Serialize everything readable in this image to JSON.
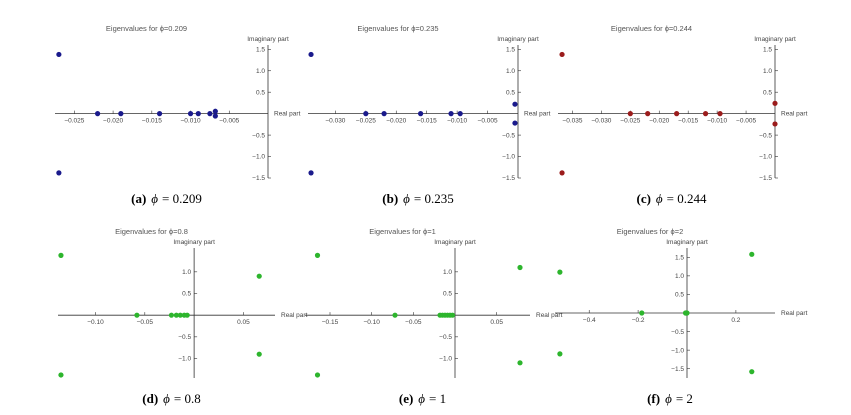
{
  "colors": {
    "blue": "#1a1a8c",
    "red": "#9b1c1c",
    "green": "#2db52d",
    "axis": "#333333"
  },
  "chart_data": [
    {
      "type": "scatter",
      "title": "Eigenvalues for ϕ=0.209",
      "xlabel": "Real part",
      "ylabel": "Imaginary part",
      "caption": {
        "letter": "(a)",
        "symbol": "ϕ",
        "value": "= 0.209"
      },
      "color": "blue",
      "xlim": [
        -0.0275,
        0.0
      ],
      "ylim": [
        -1.5,
        1.6
      ],
      "xticks": [
        {
          "v": -0.025,
          "label": "−0.025"
        },
        {
          "v": -0.02,
          "label": "−0.020"
        },
        {
          "v": -0.015,
          "label": "−0.015"
        },
        {
          "v": -0.01,
          "label": "−0.010"
        },
        {
          "v": -0.005,
          "label": "−0.005"
        }
      ],
      "yticks": [
        {
          "v": 1.5,
          "label": "1.5"
        },
        {
          "v": 1.0,
          "label": "1.0"
        },
        {
          "v": 0.5,
          "label": "0.5"
        },
        {
          "v": -0.5,
          "label": "−0.5"
        },
        {
          "v": -1.0,
          "label": "−1.0"
        },
        {
          "v": -1.5,
          "label": "−1.5"
        }
      ],
      "points": [
        [
          -0.027,
          1.38
        ],
        [
          -0.027,
          -1.38
        ],
        [
          -0.022,
          0.0
        ],
        [
          -0.019,
          0.0
        ],
        [
          -0.014,
          0.0
        ],
        [
          -0.01,
          0.0
        ],
        [
          -0.009,
          0.0
        ],
        [
          -0.0075,
          0.0
        ],
        [
          -0.0068,
          0.055
        ],
        [
          -0.0068,
          -0.055
        ]
      ]
    },
    {
      "type": "scatter",
      "title": "Eigenvalues for ϕ=0.235",
      "xlabel": "Real part",
      "ylabel": "Imaginary part",
      "caption": {
        "letter": "(b)",
        "symbol": "ϕ",
        "value": "= 0.235"
      },
      "color": "blue",
      "xlim": [
        -0.0345,
        0.0
      ],
      "ylim": [
        -1.5,
        1.6
      ],
      "xticks": [
        {
          "v": -0.03,
          "label": "−0.030"
        },
        {
          "v": -0.025,
          "label": "−0.025"
        },
        {
          "v": -0.02,
          "label": "−0.020"
        },
        {
          "v": -0.015,
          "label": "−0.015"
        },
        {
          "v": -0.01,
          "label": "−0.010"
        },
        {
          "v": -0.005,
          "label": "−0.005"
        }
      ],
      "yticks": [
        {
          "v": 1.5,
          "label": "1.5"
        },
        {
          "v": 1.0,
          "label": "1.0"
        },
        {
          "v": 0.5,
          "label": "0.5"
        },
        {
          "v": -0.5,
          "label": "−0.5"
        },
        {
          "v": -1.0,
          "label": "−1.0"
        },
        {
          "v": -1.5,
          "label": "−1.5"
        }
      ],
      "points": [
        [
          -0.034,
          1.38
        ],
        [
          -0.034,
          -1.38
        ],
        [
          -0.025,
          0.0
        ],
        [
          -0.022,
          0.0
        ],
        [
          -0.016,
          0.0
        ],
        [
          -0.011,
          0.0
        ],
        [
          -0.0095,
          0.0
        ],
        [
          -0.0005,
          0.22
        ],
        [
          -0.0005,
          -0.22
        ]
      ]
    },
    {
      "type": "scatter",
      "title": "Eigenvalues for ϕ=0.244",
      "xlabel": "Real part",
      "ylabel": "Imaginary part",
      "caption": {
        "letter": "(c)",
        "symbol": "ϕ",
        "value": "= 0.244"
      },
      "color": "red",
      "xlim": [
        -0.0375,
        0.0
      ],
      "ylim": [
        -1.5,
        1.6
      ],
      "xticks": [
        {
          "v": -0.035,
          "label": "−0.035"
        },
        {
          "v": -0.03,
          "label": "−0.030"
        },
        {
          "v": -0.025,
          "label": "−0.025"
        },
        {
          "v": -0.02,
          "label": "−0.020"
        },
        {
          "v": -0.015,
          "label": "−0.015"
        },
        {
          "v": -0.01,
          "label": "−0.010"
        },
        {
          "v": -0.005,
          "label": "−0.005"
        }
      ],
      "yticks": [
        {
          "v": 1.5,
          "label": "1.5"
        },
        {
          "v": 1.0,
          "label": "1.0"
        },
        {
          "v": 0.5,
          "label": "0.5"
        },
        {
          "v": -0.5,
          "label": "−0.5"
        },
        {
          "v": -1.0,
          "label": "−1.0"
        },
        {
          "v": -1.5,
          "label": "−1.5"
        }
      ],
      "points": [
        [
          -0.0368,
          1.38
        ],
        [
          -0.0368,
          -1.38
        ],
        [
          -0.025,
          0.0
        ],
        [
          -0.022,
          0.0
        ],
        [
          -0.017,
          0.0
        ],
        [
          -0.012,
          0.0
        ],
        [
          -0.0095,
          0.0
        ],
        [
          0.0,
          0.24
        ],
        [
          0.0,
          -0.24
        ]
      ]
    },
    {
      "type": "scatter",
      "title": "Eigenvalues for ϕ=0.8",
      "xlabel": "Real part",
      "ylabel": "Imaginary part",
      "caption": {
        "letter": "(d)",
        "symbol": "ϕ",
        "value": "= 0.8"
      },
      "color": "green",
      "xlim": [
        -0.138,
        0.082
      ],
      "ylim": [
        -1.45,
        1.55
      ],
      "xticks": [
        {
          "v": -0.1,
          "label": "−0.10"
        },
        {
          "v": -0.05,
          "label": "−0.05"
        },
        {
          "v": 0.05,
          "label": "0.05"
        }
      ],
      "yticks": [
        {
          "v": 1.0,
          "label": "1.0"
        },
        {
          "v": 0.5,
          "label": "0.5"
        },
        {
          "v": -0.5,
          "label": "−0.5"
        },
        {
          "v": -1.0,
          "label": "−1.0"
        }
      ],
      "points": [
        [
          -0.135,
          1.38
        ],
        [
          -0.135,
          -1.38
        ],
        [
          -0.058,
          0.0
        ],
        [
          -0.023,
          0.0
        ],
        [
          -0.018,
          0.0
        ],
        [
          -0.014,
          0.0
        ],
        [
          -0.01,
          0.0
        ],
        [
          -0.007,
          0.0
        ],
        [
          0.066,
          0.9
        ],
        [
          0.066,
          -0.9
        ]
      ]
    },
    {
      "type": "scatter",
      "title": "Eigenvalues for ϕ=1",
      "xlabel": "Real part",
      "ylabel": "Imaginary part",
      "caption": {
        "letter": "(e)",
        "symbol": "ϕ",
        "value": "= 1"
      },
      "color": "green",
      "xlim": [
        -0.18,
        0.09
      ],
      "ylim": [
        -1.45,
        1.55
      ],
      "xticks": [
        {
          "v": -0.15,
          "label": "−0.15"
        },
        {
          "v": -0.1,
          "label": "−0.10"
        },
        {
          "v": -0.05,
          "label": "−0.05"
        },
        {
          "v": 0.05,
          "label": "0.05"
        }
      ],
      "yticks": [
        {
          "v": 1.0,
          "label": "1.0"
        },
        {
          "v": 0.5,
          "label": "0.5"
        },
        {
          "v": -0.5,
          "label": "−0.5"
        },
        {
          "v": -1.0,
          "label": "−1.0"
        }
      ],
      "points": [
        [
          -0.165,
          1.38
        ],
        [
          -0.165,
          -1.38
        ],
        [
          -0.072,
          0.0
        ],
        [
          -0.018,
          0.0
        ],
        [
          -0.015,
          0.0
        ],
        [
          -0.012,
          0.0
        ],
        [
          -0.009,
          0.0
        ],
        [
          -0.006,
          0.0
        ],
        [
          -0.003,
          0.0
        ],
        [
          0.078,
          1.1
        ],
        [
          0.078,
          -1.1
        ]
      ]
    },
    {
      "type": "scatter",
      "title": "Eigenvalues for ϕ=2",
      "xlabel": "Real part",
      "ylabel": "Imaginary part",
      "caption": {
        "letter": "(f)",
        "symbol": "ϕ",
        "value": "= 2"
      },
      "color": "green",
      "xlim": [
        -0.54,
        0.36
      ],
      "ylim": [
        -1.75,
        1.75
      ],
      "xticks": [
        {
          "v": -0.4,
          "label": "−0.4"
        },
        {
          "v": -0.2,
          "label": "−0.2"
        },
        {
          "v": 0.2,
          "label": "0.2"
        }
      ],
      "yticks": [
        {
          "v": 1.5,
          "label": "1.5"
        },
        {
          "v": 1.0,
          "label": "1.0"
        },
        {
          "v": 0.5,
          "label": "0.5"
        },
        {
          "v": -0.5,
          "label": "−0.5"
        },
        {
          "v": -1.0,
          "label": "−1.0"
        },
        {
          "v": -1.5,
          "label": "−1.5"
        }
      ],
      "points": [
        [
          -0.52,
          1.1
        ],
        [
          -0.52,
          -1.1
        ],
        [
          -0.185,
          0.0
        ],
        [
          -0.006,
          0.0
        ],
        [
          -0.004,
          0.0
        ],
        [
          -0.002,
          0.0
        ],
        [
          0.0,
          0.0
        ],
        [
          0.265,
          1.58
        ],
        [
          0.265,
          -1.58
        ]
      ]
    }
  ]
}
